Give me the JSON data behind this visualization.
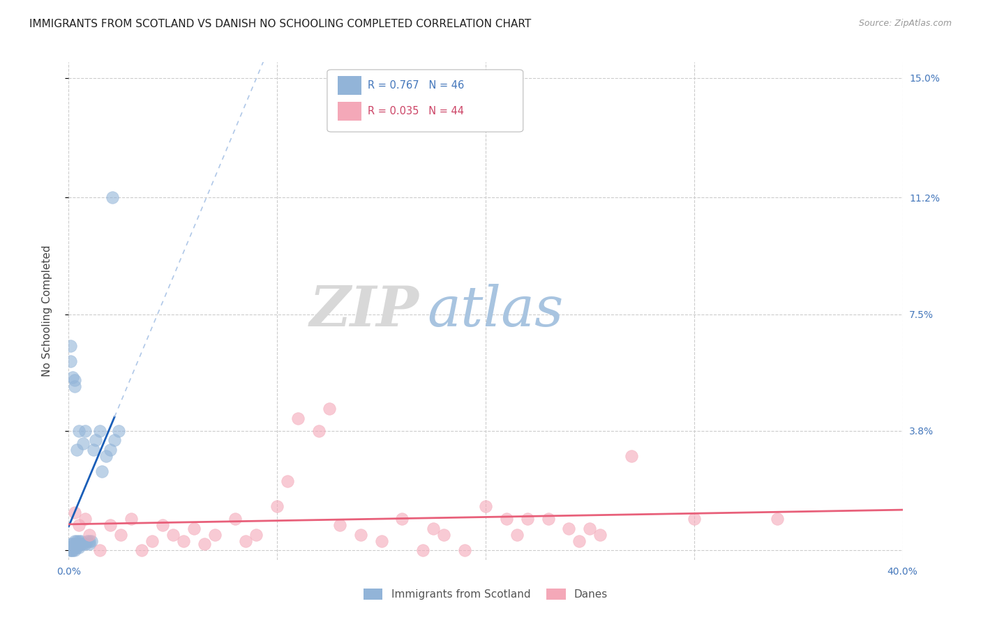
{
  "title": "IMMIGRANTS FROM SCOTLAND VS DANISH NO SCHOOLING COMPLETED CORRELATION CHART",
  "source": "Source: ZipAtlas.com",
  "ylabel": "No Schooling Completed",
  "xlim": [
    0.0,
    0.4
  ],
  "ylim": [
    -0.003,
    0.155
  ],
  "xtick_positions": [
    0.0,
    0.1,
    0.2,
    0.3,
    0.4
  ],
  "xticklabels": [
    "0.0%",
    "",
    "",
    "",
    "40.0%"
  ],
  "ytick_positions": [
    0.0,
    0.038,
    0.075,
    0.112,
    0.15
  ],
  "ytick_labels": [
    "",
    "3.8%",
    "7.5%",
    "11.2%",
    "15.0%"
  ],
  "legend_r1_text": "R = 0.767   N = 46",
  "legend_r2_text": "R = 0.035   N = 44",
  "scotland_color": "#92b4d8",
  "danes_color": "#f4a8b8",
  "scotland_line_color": "#1a5eb8",
  "danes_line_color": "#e8607a",
  "trendline_dashed_color": "#b0c8e8",
  "background_color": "#ffffff",
  "grid_color": "#cccccc",
  "watermark_zip_color": "#c8d8e8",
  "watermark_atlas_color": "#a8c4e0",
  "scotland_points_x": [
    0.001,
    0.001,
    0.001,
    0.001,
    0.001,
    0.002,
    0.002,
    0.002,
    0.002,
    0.003,
    0.003,
    0.003,
    0.003,
    0.003,
    0.003,
    0.004,
    0.004,
    0.004,
    0.004,
    0.005,
    0.005,
    0.005,
    0.005,
    0.006,
    0.006,
    0.007,
    0.007,
    0.008,
    0.008,
    0.009,
    0.01,
    0.01,
    0.011,
    0.012,
    0.013,
    0.015,
    0.016,
    0.018,
    0.02,
    0.021,
    0.022,
    0.024,
    0.001,
    0.001,
    0.002,
    0.003
  ],
  "scotland_points_y": [
    0.0,
    0.001,
    0.002,
    0.06,
    0.065,
    0.0,
    0.001,
    0.002,
    0.055,
    0.0,
    0.001,
    0.002,
    0.003,
    0.052,
    0.054,
    0.001,
    0.002,
    0.003,
    0.032,
    0.001,
    0.002,
    0.003,
    0.038,
    0.002,
    0.003,
    0.002,
    0.034,
    0.002,
    0.038,
    0.003,
    0.002,
    0.003,
    0.003,
    0.032,
    0.035,
    0.038,
    0.025,
    0.03,
    0.032,
    0.112,
    0.035,
    0.038,
    0.0,
    0.001,
    0.0,
    0.001
  ],
  "danes_points_x": [
    0.003,
    0.005,
    0.008,
    0.01,
    0.015,
    0.02,
    0.025,
    0.03,
    0.035,
    0.04,
    0.045,
    0.05,
    0.055,
    0.06,
    0.065,
    0.07,
    0.08,
    0.085,
    0.09,
    0.1,
    0.105,
    0.11,
    0.12,
    0.125,
    0.13,
    0.14,
    0.15,
    0.16,
    0.17,
    0.175,
    0.18,
    0.19,
    0.2,
    0.21,
    0.215,
    0.22,
    0.23,
    0.24,
    0.245,
    0.25,
    0.255,
    0.27,
    0.3,
    0.34
  ],
  "danes_points_y": [
    0.012,
    0.008,
    0.01,
    0.005,
    0.0,
    0.008,
    0.005,
    0.01,
    0.0,
    0.003,
    0.008,
    0.005,
    0.003,
    0.007,
    0.002,
    0.005,
    0.01,
    0.003,
    0.005,
    0.014,
    0.022,
    0.042,
    0.038,
    0.045,
    0.008,
    0.005,
    0.003,
    0.01,
    0.0,
    0.007,
    0.005,
    0.0,
    0.014,
    0.01,
    0.005,
    0.01,
    0.01,
    0.007,
    0.003,
    0.007,
    0.005,
    0.03,
    0.01,
    0.01
  ]
}
